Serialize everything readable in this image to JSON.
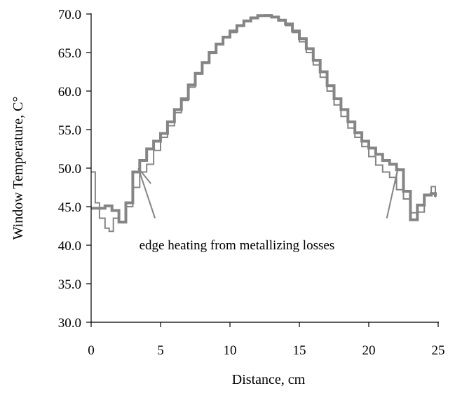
{
  "chart_data": {
    "type": "line",
    "xlabel": "Distance, cm",
    "ylabel": "Window Temperature, C°",
    "xlim": [
      0,
      25
    ],
    "ylim": [
      30,
      70
    ],
    "x_ticks": [
      "0",
      "5",
      "10",
      "15",
      "20",
      "25"
    ],
    "y_ticks": [
      "30.0",
      "35.0",
      "40.0",
      "45.0",
      "50.0",
      "55.0",
      "60.0",
      "65.0",
      "70.0"
    ],
    "grid": false,
    "colors": {
      "series": "#858585",
      "axis": "#000000"
    },
    "series": [
      {
        "style": "thick",
        "x": [
          0,
          0.5,
          1,
          1.5,
          2,
          2.5,
          3,
          3.5,
          4,
          4.5,
          5,
          5.5,
          6,
          6.5,
          7,
          7.5,
          8,
          8.5,
          9,
          9.5,
          10,
          10.5,
          11,
          11.5,
          12,
          12.5,
          13,
          13.5,
          14,
          14.5,
          15,
          15.5,
          16,
          16.5,
          17,
          17.5,
          18,
          18.5,
          19,
          19.5,
          20,
          20.5,
          21,
          21.5,
          22,
          22.5,
          23,
          23.5,
          24,
          24.5,
          24.8
        ],
        "y": [
          44.8,
          44.8,
          45.1,
          44.5,
          43,
          45.5,
          49.5,
          51,
          52.5,
          53.5,
          54.5,
          56,
          57.6,
          59,
          60.8,
          62.3,
          63.7,
          65,
          66.1,
          67,
          67.8,
          68.5,
          69.1,
          69.5,
          69.8,
          69.8,
          69.6,
          69.2,
          68.7,
          67.8,
          66.8,
          65.5,
          64,
          62.5,
          60.7,
          59,
          57.6,
          56,
          54.6,
          53.5,
          52.6,
          51.8,
          51,
          50.5,
          49.8,
          47,
          43.3,
          45.2,
          46.5,
          46.7,
          46.3
        ]
      },
      {
        "style": "thin",
        "x": [
          0,
          0.3,
          0.6,
          1,
          1.3,
          1.6,
          2,
          2.5,
          3,
          3.5,
          4,
          4.5,
          5,
          5.5,
          6,
          6.5,
          7,
          7.5,
          8,
          8.5,
          9,
          9.5,
          10,
          10.5,
          11,
          11.5,
          12,
          12.5,
          13,
          13.5,
          14,
          14.5,
          15,
          15.5,
          16,
          16.5,
          17,
          17.5,
          18,
          18.5,
          19,
          19.5,
          20,
          20.5,
          21,
          21.5,
          22,
          22.5,
          23,
          23.5,
          24,
          24.5,
          24.8
        ],
        "y": [
          49.5,
          45.5,
          43.5,
          42.2,
          41.8,
          43.5,
          43,
          45,
          47.5,
          49.5,
          50.5,
          52.3,
          54,
          55.5,
          57.2,
          58.8,
          60.5,
          62.2,
          63.6,
          64.9,
          66,
          67,
          67.6,
          68.4,
          69,
          69.4,
          69.7,
          69.9,
          69.6,
          69.1,
          68.5,
          67.6,
          66.4,
          65,
          63.4,
          61.8,
          60,
          58.2,
          56.7,
          55.2,
          54,
          52.8,
          51.5,
          50.4,
          49.5,
          48.8,
          47.2,
          46,
          44.2,
          44.3,
          46.6,
          47.6,
          46.2
        ]
      }
    ],
    "annotation": {
      "text": "edge heating from metallizing losses",
      "x": 10.5,
      "y": 40,
      "arrows": [
        {
          "from": [
            4.6,
            43.5
          ],
          "to": [
            3.4,
            50
          ]
        },
        {
          "from": [
            4.3,
            48
          ],
          "to": [
            3.4,
            50
          ]
        },
        {
          "from": [
            21.3,
            43.5
          ],
          "to": [
            22.1,
            50
          ]
        },
        {
          "from": [
            21.9,
            48
          ],
          "to": [
            22.1,
            50
          ]
        }
      ]
    }
  }
}
